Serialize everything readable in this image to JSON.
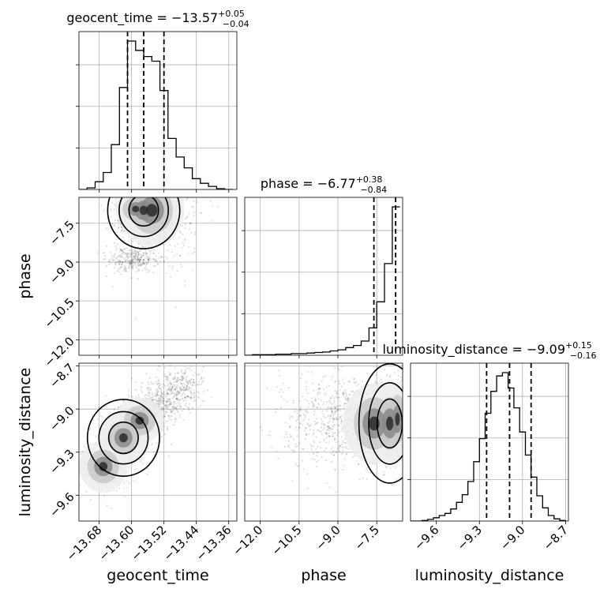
{
  "chart_data": {
    "type": "corner",
    "parameters": [
      {
        "name": "geocent_time",
        "label": "geocent_time",
        "title": {
          "prefix": "geocent_time = ",
          "median": "−13.57",
          "plus": "+0.05",
          "minus": "−0.04"
        },
        "range": [
          -13.73,
          -13.34
        ],
        "ticks": [
          -13.68,
          -13.6,
          -13.52,
          -13.44,
          -13.36
        ],
        "tick_labels": [
          "−13.68",
          "−13.60",
          "−13.52",
          "−13.44",
          "−13.36"
        ],
        "quantiles": [
          -13.61,
          -13.57,
          -13.52
        ]
      },
      {
        "name": "phase",
        "label": "phase",
        "title": {
          "prefix": "phase = ",
          "median": "−6.77",
          "plus": "+0.38",
          "minus": "−0.84"
        },
        "range": [
          -12.6,
          -6.5
        ],
        "ticks": [
          -12.0,
          -10.5,
          -9.0,
          -7.5
        ],
        "tick_labels": [
          "−12.0",
          "−10.5",
          "−9.0",
          "−7.5"
        ],
        "quantiles": [
          -7.61,
          -6.77,
          -6.39
        ]
      },
      {
        "name": "luminosity_distance",
        "label": "luminosity_distance",
        "title": {
          "prefix": "luminosity_distance = ",
          "median": "−9.09",
          "plus": "+0.15",
          "minus": "−0.16"
        },
        "range": [
          -9.78,
          -8.68
        ],
        "ticks": [
          -9.6,
          -9.3,
          -9.0,
          -8.7
        ],
        "tick_labels": [
          "−9.6",
          "−9.3",
          "−9.0",
          "−8.7"
        ],
        "quantiles": [
          -9.25,
          -9.09,
          -8.94
        ]
      }
    ],
    "histograms": [
      {
        "param": "geocent_time",
        "bin_edges": [
          -13.73,
          -13.71,
          -13.69,
          -13.67,
          -13.65,
          -13.63,
          -13.61,
          -13.59,
          -13.57,
          -13.55,
          -13.53,
          -13.51,
          -13.49,
          -13.47,
          -13.45,
          -13.43,
          -13.41,
          -13.39,
          -13.37,
          -13.35
        ],
        "counts": [
          0,
          2,
          10,
          22,
          58,
          132,
          192,
          180,
          172,
          166,
          128,
          66,
          42,
          28,
          14,
          8,
          4,
          1,
          0
        ]
      },
      {
        "param": "phase",
        "bin_edges": [
          -12.6,
          -12.3,
          -12.0,
          -11.7,
          -11.4,
          -11.1,
          -10.8,
          -10.5,
          -10.2,
          -9.9,
          -9.6,
          -9.3,
          -9.0,
          -8.7,
          -8.4,
          -8.1,
          -7.8,
          -7.5,
          -7.2,
          -6.9,
          -6.6
        ],
        "counts": [
          0,
          1,
          1,
          1,
          2,
          2,
          3,
          3,
          4,
          5,
          6,
          8,
          10,
          14,
          18,
          26,
          50,
          98,
          168,
          272
        ]
      },
      {
        "param": "luminosity_distance",
        "bin_edges": [
          -9.78,
          -9.74,
          -9.7,
          -9.66,
          -9.62,
          -9.58,
          -9.54,
          -9.5,
          -9.46,
          -9.42,
          -9.38,
          -9.34,
          -9.3,
          -9.26,
          -9.22,
          -9.18,
          -9.14,
          -9.1,
          -9.06,
          -9.02,
          -8.98,
          -8.94,
          -8.9,
          -8.86,
          -8.82,
          -8.78,
          -8.74,
          -8.7
        ],
        "counts": [
          0,
          0,
          1,
          3,
          6,
          10,
          14,
          22,
          34,
          48,
          72,
          108,
          150,
          196,
          236,
          264,
          270,
          242,
          206,
          162,
          120,
          80,
          46,
          24,
          10,
          4,
          1
        ]
      }
    ],
    "scatter_panels": [
      {
        "x": "geocent_time",
        "y": "phase",
        "centers": [
          [
            -13.59,
            -6.95
          ],
          [
            -13.57,
            -7.0
          ],
          [
            -13.55,
            -7.0
          ],
          [
            -13.6,
            -8.9
          ],
          [
            -13.52,
            -7.2
          ]
        ],
        "spreads": [
          [
            0.025,
            0.35
          ],
          [
            0.03,
            0.5
          ],
          [
            0.04,
            0.7
          ],
          [
            0.03,
            0.25
          ],
          [
            0.05,
            1.1
          ]
        ]
      },
      {
        "x": "geocent_time",
        "y": "luminosity_distance",
        "centers": [
          [
            -13.67,
            -9.4
          ],
          [
            -13.62,
            -9.2
          ],
          [
            -13.58,
            -9.08
          ],
          [
            -13.53,
            -8.96
          ],
          [
            -13.48,
            -8.85
          ]
        ],
        "spreads": [
          [
            0.03,
            0.09
          ],
          [
            0.03,
            0.09
          ],
          [
            0.03,
            0.08
          ],
          [
            0.03,
            0.08
          ],
          [
            0.03,
            0.08
          ]
        ]
      },
      {
        "x": "phase",
        "y": "luminosity_distance",
        "centers": [
          [
            -6.7,
            -9.07
          ],
          [
            -7.0,
            -9.1
          ],
          [
            -7.6,
            -9.1
          ],
          [
            -8.6,
            -9.05
          ],
          [
            -9.8,
            -9.1
          ]
        ],
        "spreads": [
          [
            0.25,
            0.13
          ],
          [
            0.4,
            0.14
          ],
          [
            0.6,
            0.14
          ],
          [
            0.7,
            0.15
          ],
          [
            0.8,
            0.16
          ]
        ]
      }
    ],
    "grid": true,
    "contour_levels": 3
  }
}
